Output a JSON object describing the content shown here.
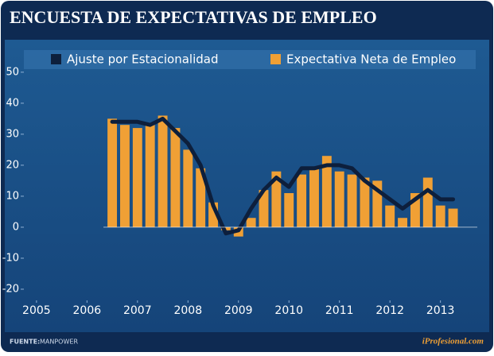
{
  "chart_data": {
    "type": "bar-line",
    "title": "ENCUESTA DE EXPECTATIVAS DE EMPLEO",
    "source_label": "FUENTE:",
    "source": "MANPOWER",
    "brand": "iProfesional.com",
    "x": [
      2006.5,
      2006.75,
      2007,
      2007.25,
      2007.5,
      2007.75,
      2008,
      2008.25,
      2008.5,
      2008.75,
      2009,
      2009.25,
      2009.5,
      2009.75,
      2010,
      2010.25,
      2010.5,
      2010.75,
      2011,
      2011.25,
      2011.5,
      2011.75,
      2012,
      2012.25,
      2012.5,
      2012.75,
      2013,
      2013.25
    ],
    "series": [
      {
        "name": "Ajuste por Estacionalidad",
        "color": "#0d1f3c",
        "kind": "line",
        "values": [
          34,
          34,
          34,
          33,
          35,
          31,
          27,
          20,
          7,
          -2,
          -1,
          6,
          12,
          16,
          13,
          19,
          19,
          20,
          20,
          19,
          15,
          12,
          9,
          6,
          9,
          12,
          9,
          9
        ]
      },
      {
        "name": "Expectativa Neta de Empleo",
        "color": "#f0a035",
        "kind": "bar",
        "values": [
          35,
          33,
          32,
          33,
          36,
          32,
          25,
          19,
          8,
          -1,
          -3,
          3,
          12,
          18,
          11,
          17,
          19,
          23,
          18,
          17,
          16,
          15,
          7,
          3,
          11,
          16,
          7,
          6
        ]
      }
    ],
    "xlim": [
      2004.75,
      2013.73
    ],
    "xticks": [
      2005,
      2006,
      2007,
      2008,
      2009,
      2010,
      2011,
      2012,
      2013
    ],
    "ylim": [
      -23.6,
      57.4
    ],
    "yticks": [
      -20,
      -10,
      0,
      10,
      20,
      30,
      40,
      50
    ]
  }
}
